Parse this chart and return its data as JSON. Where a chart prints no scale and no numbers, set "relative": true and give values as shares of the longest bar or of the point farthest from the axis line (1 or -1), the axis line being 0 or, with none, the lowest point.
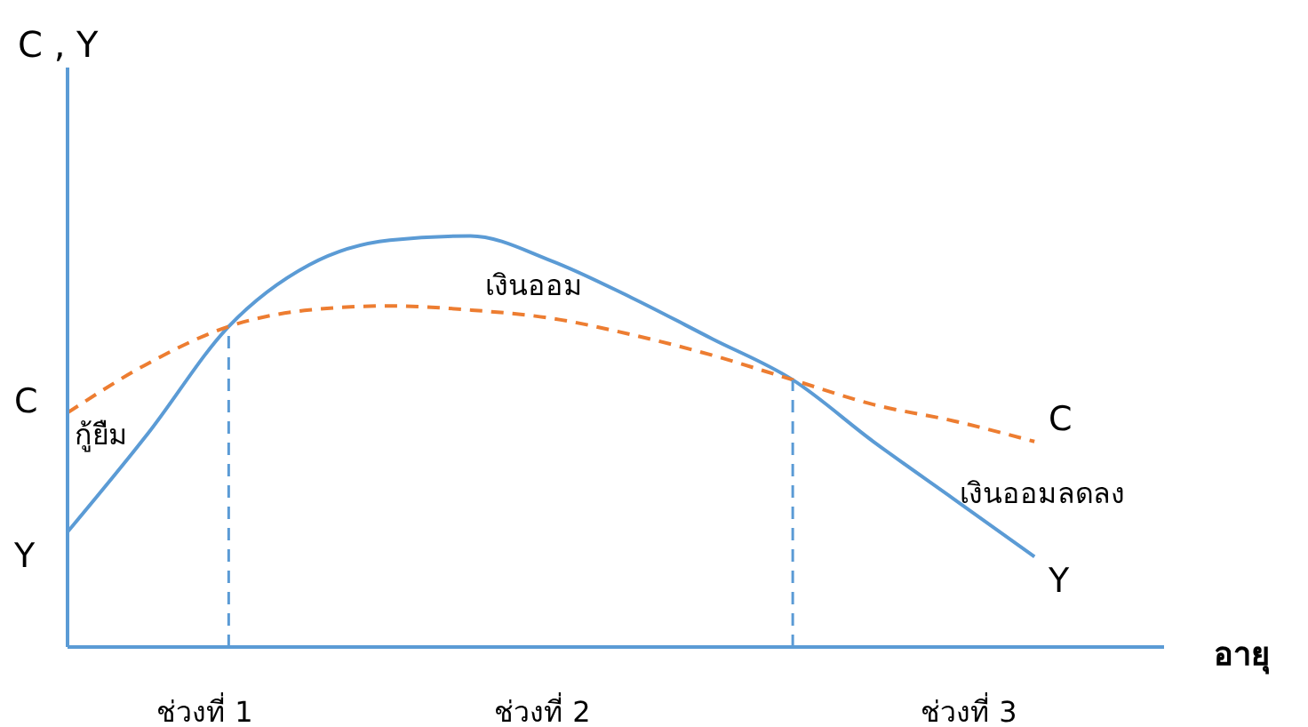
{
  "chart_data": {
    "type": "line",
    "relative": true,
    "ylabel": "C , Y",
    "xlabel": "อายุ",
    "tick_labels": false,
    "marker": "none",
    "categories": [
      null,
      null,
      null,
      null,
      null,
      null,
      null,
      null,
      null,
      null,
      null,
      null,
      null
    ],
    "series": [
      {
        "name": "Y",
        "color": "#5b9bd5",
        "line_style": "solid",
        "values": [
          0.28,
          0.52,
          0.78,
          0.93,
          0.99,
          1,
          0.94,
          0.85,
          0.75,
          0.65,
          0.5,
          0.36,
          0.22
        ]
      },
      {
        "name": "C",
        "color": "#ed7d31",
        "line_style": "dashed",
        "values": [
          0.57,
          0.69,
          0.78,
          0.82,
          0.83,
          0.82,
          0.8,
          0.76,
          0.71,
          0.65,
          0.59,
          0.55,
          0.5
        ]
      }
    ],
    "annotations": [
      "เงินออม",
      "กู้ยืม",
      "เงินออมลดลง",
      "ช่วงที่ 1",
      "ช่วงที่ 2",
      "ช่วงที่ 3"
    ]
  }
}
